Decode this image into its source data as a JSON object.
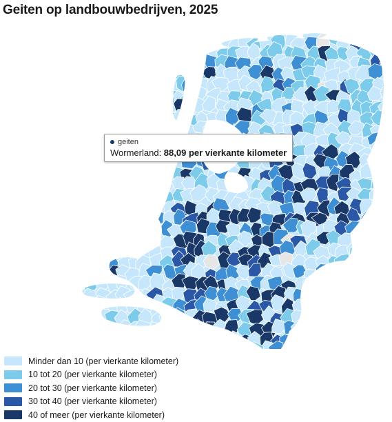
{
  "title": "Geiten op landbouwbedrijven, 2025",
  "colors": {
    "bin0": "#c6e7fb",
    "bin1": "#7ccbea",
    "bin2": "#3e8fd4",
    "bin3": "#2a58a6",
    "bin4": "#1a3867",
    "nodata": "#e6e6e6",
    "border": "#ffffff"
  },
  "tooltip": {
    "series": "geiten",
    "region": "Wormerland",
    "value": "88,09 per vierkante kilometer"
  },
  "chart_data": {
    "type": "choropleth",
    "unit": "per vierkante kilometer",
    "legend": [
      {
        "label": "Minder dan 10 (per vierkante kilometer)",
        "color": "#c6e7fb"
      },
      {
        "label": "10 tot 20 (per vierkante kilometer)",
        "color": "#7ccbea"
      },
      {
        "label": "20 tot 30 (per vierkante kilometer)",
        "color": "#3e8fd4"
      },
      {
        "label": "30 tot 40 (per vierkante kilometer)",
        "color": "#2a58a6"
      },
      {
        "label": "40 of meer (per vierkante kilometer)",
        "color": "#1a3867"
      }
    ],
    "highlight": {
      "region": "Wormerland",
      "value": 88.09
    }
  }
}
